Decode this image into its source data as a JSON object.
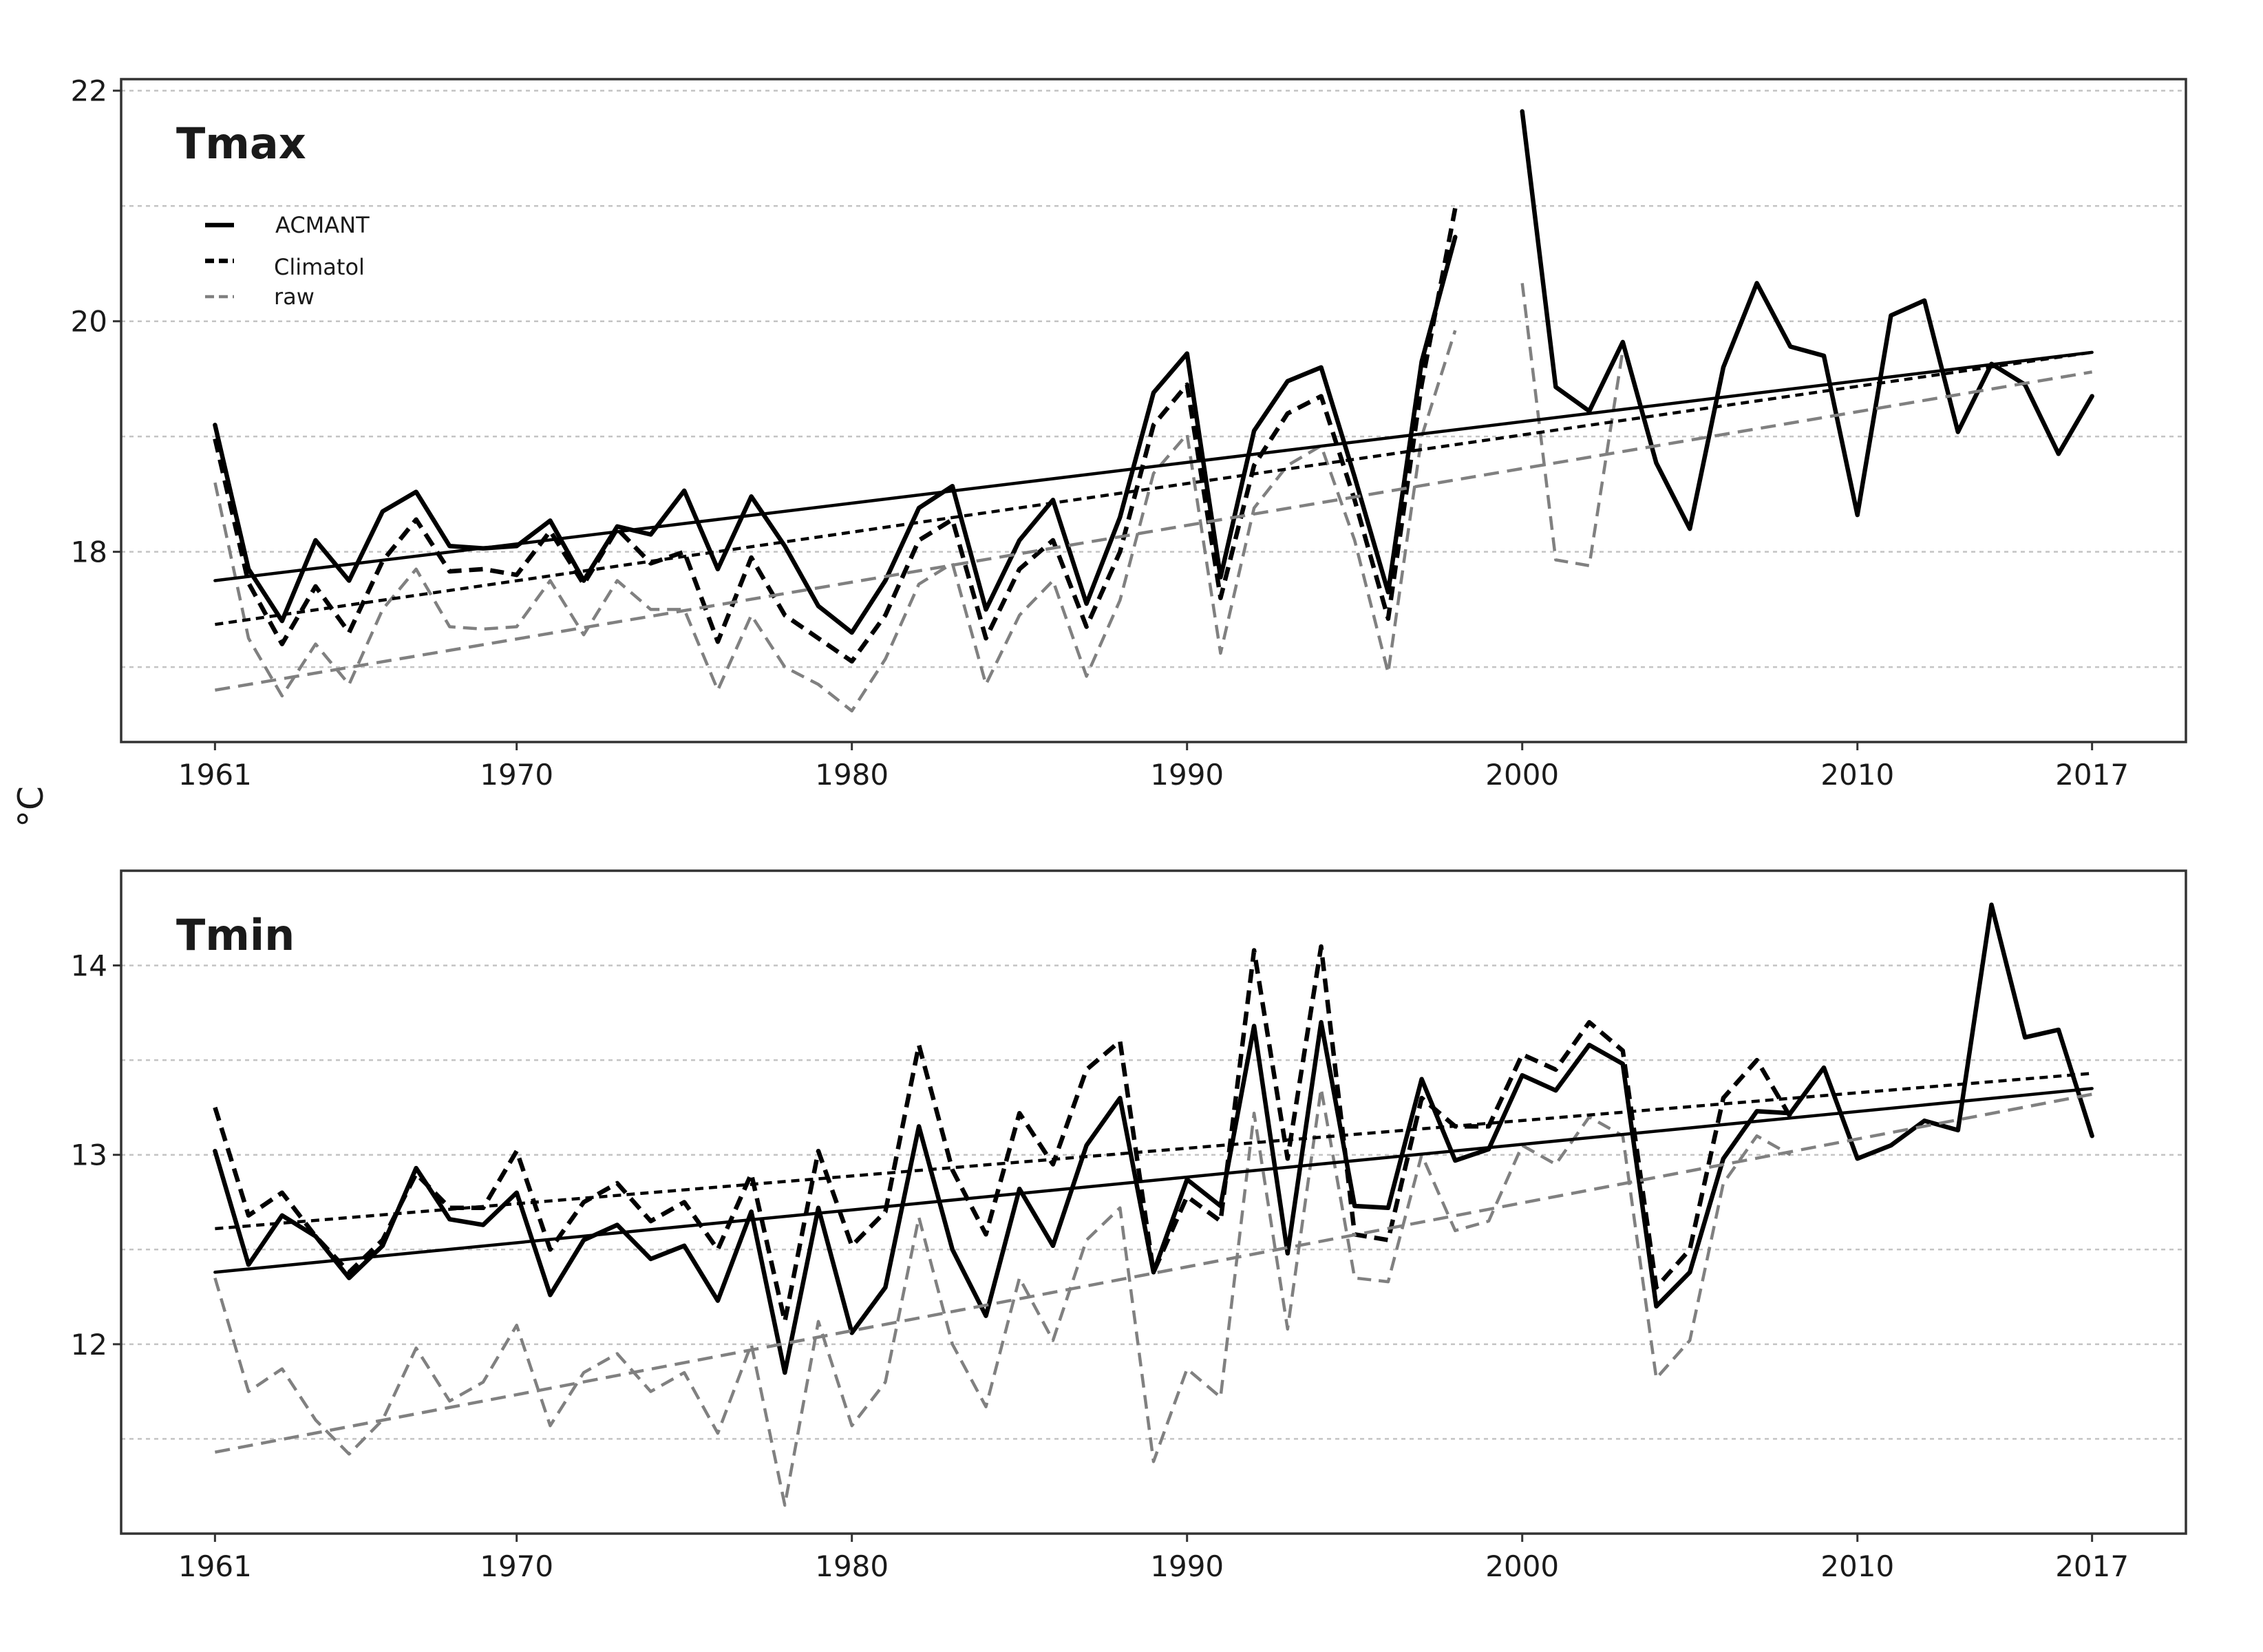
{
  "chart_data": {
    "type": "line",
    "ylabel": "°C",
    "legend": {
      "placement": "top-left",
      "entries": [
        {
          "label": "ACMANT",
          "style": "solid",
          "color": "#000000"
        },
        {
          "label": "Climatol",
          "style": "dashed",
          "color": "#000000"
        },
        {
          "label": "raw",
          "style": "dashed",
          "color": "#808080"
        }
      ]
    },
    "panels": [
      {
        "title": "Tmax",
        "ylim": [
          16.35,
          22.1
        ],
        "yticks": [
          18,
          20,
          22
        ],
        "grid_y": [
          17,
          18,
          19,
          20,
          21,
          22
        ],
        "xticks": [
          1961,
          1970,
          1980,
          1990,
          2000,
          2010,
          2017
        ],
        "xlim": [
          1958.2,
          2019.8
        ],
        "series": [
          {
            "name": "ACMANT",
            "color": "#000000",
            "style": "solid",
            "x": [
              1961,
              1962,
              1963,
              1964,
              1965,
              1966,
              1967,
              1968,
              1969,
              1970,
              1971,
              1972,
              1973,
              1974,
              1975,
              1976,
              1977,
              1978,
              1979,
              1980,
              1981,
              1982,
              1983,
              1984,
              1985,
              1986,
              1987,
              1988,
              1989,
              1990,
              1991,
              1992,
              1993,
              1994,
              1995,
              1996,
              1997,
              1998,
              1999,
              2000,
              2001,
              2002,
              2003,
              2004,
              2005,
              2006,
              2007,
              2008,
              2009,
              2010,
              2011,
              2012,
              2013,
              2014,
              2015,
              2016,
              2017
            ],
            "y": [
              19.1,
              17.85,
              17.4,
              18.1,
              17.75,
              18.35,
              18.52,
              18.05,
              18.03,
              18.05,
              18.27,
              17.75,
              18.22,
              18.15,
              18.53,
              17.85,
              18.48,
              18.05,
              17.53,
              17.3,
              17.75,
              18.38,
              18.57,
              17.5,
              18.1,
              18.45,
              17.55,
              18.3,
              19.38,
              19.72,
              17.78,
              19.05,
              19.48,
              19.6,
              18.65,
              17.65,
              19.65,
              20.73,
              null,
              21.82,
              19.43,
              19.22,
              19.82,
              18.77,
              18.2,
              19.6,
              20.33,
              19.78,
              19.7,
              18.32,
              20.05,
              20.18,
              19.04,
              19.63,
              19.45,
              18.85,
              19.35
            ]
          },
          {
            "name": "Climatol",
            "color": "#000000",
            "style": "dashed",
            "x": [
              1961,
              1962,
              1963,
              1964,
              1965,
              1966,
              1967,
              1968,
              1969,
              1970,
              1971,
              1972,
              1973,
              1974,
              1975,
              1976,
              1977,
              1978,
              1979,
              1980,
              1981,
              1982,
              1983,
              1984,
              1985,
              1986,
              1987,
              1988,
              1989,
              1990,
              1991,
              1992,
              1993,
              1994,
              1995,
              1996,
              1997,
              1998
            ],
            "y": [
              18.98,
              17.73,
              17.2,
              17.7,
              17.3,
              17.92,
              18.28,
              17.83,
              17.85,
              17.8,
              18.18,
              17.72,
              18.2,
              17.9,
              18.0,
              17.22,
              17.95,
              17.45,
              17.25,
              17.05,
              17.45,
              18.1,
              18.28,
              17.25,
              17.85,
              18.1,
              17.35,
              18.0,
              19.1,
              19.45,
              17.6,
              18.75,
              19.2,
              19.35,
              18.45,
              17.42,
              19.45,
              20.98
            ]
          },
          {
            "name": "raw",
            "color": "#808080",
            "style": "dashed",
            "x": [
              1961,
              1962,
              1963,
              1964,
              1965,
              1966,
              1967,
              1968,
              1969,
              1970,
              1971,
              1972,
              1973,
              1974,
              1975,
              1976,
              1977,
              1978,
              1979,
              1980,
              1981,
              1982,
              1983,
              1984,
              1985,
              1986,
              1987,
              1988,
              1989,
              1990,
              1991,
              1992,
              1993,
              1994,
              1995,
              1996,
              1997,
              1998,
              1999,
              2000,
              2001,
              2002,
              2003
            ],
            "y": [
              18.6,
              17.25,
              16.75,
              17.2,
              16.85,
              17.5,
              17.85,
              17.35,
              17.33,
              17.35,
              17.75,
              17.28,
              17.75,
              17.5,
              17.5,
              16.8,
              17.45,
              17.0,
              16.85,
              16.62,
              17.07,
              17.72,
              17.9,
              16.85,
              17.45,
              17.75,
              16.92,
              17.58,
              18.68,
              19.02,
              17.12,
              18.38,
              18.75,
              18.92,
              18.1,
              16.95,
              19.0,
              19.92,
              null,
              20.33,
              17.93,
              17.88,
              19.75
            ]
          },
          {
            "name": "",
            "color": "#000000",
            "style": "solid",
            "trend": true,
            "x": [
              1961,
              2017
            ],
            "y": [
              17.75,
              19.73
            ]
          },
          {
            "name": "",
            "color": "#000000",
            "style": "dotted",
            "trend": true,
            "x": [
              1961,
              2017
            ],
            "y": [
              17.37,
              19.73
            ]
          },
          {
            "name": "",
            "color": "#808080",
            "style": "dashed",
            "trend": true,
            "x": [
              1961,
              2017
            ],
            "y": [
              16.8,
              19.56
            ]
          }
        ]
      },
      {
        "title": "Tmin",
        "ylim": [
          11.0,
          14.5
        ],
        "yticks": [
          12,
          13,
          14
        ],
        "grid_y": [
          11.5,
          12,
          12.5,
          13,
          13.5,
          14
        ],
        "xticks": [
          1961,
          1970,
          1980,
          1990,
          2000,
          2010,
          2017
        ],
        "xlim": [
          1958.2,
          2019.8
        ],
        "series": [
          {
            "name": "ACMANT",
            "color": "#000000",
            "style": "solid",
            "x": [
              1961,
              1962,
              1963,
              1964,
              1965,
              1966,
              1967,
              1968,
              1969,
              1970,
              1971,
              1972,
              1973,
              1974,
              1975,
              1976,
              1977,
              1978,
              1979,
              1980,
              1981,
              1982,
              1983,
              1984,
              1985,
              1986,
              1987,
              1988,
              1989,
              1990,
              1991,
              1992,
              1993,
              1994,
              1995,
              1996,
              1997,
              1998,
              1999,
              2000,
              2001,
              2002,
              2003,
              2004,
              2005,
              2006,
              2007,
              2008,
              2009,
              2010,
              2011,
              2012,
              2013,
              2014,
              2015,
              2016,
              2017
            ],
            "y": [
              13.02,
              12.42,
              12.68,
              12.57,
              12.35,
              12.52,
              12.93,
              12.66,
              12.63,
              12.8,
              12.26,
              12.55,
              12.63,
              12.45,
              12.52,
              12.23,
              12.7,
              11.85,
              12.72,
              12.06,
              12.3,
              13.15,
              12.5,
              12.15,
              12.82,
              12.52,
              13.05,
              13.3,
              12.38,
              12.87,
              12.73,
              13.68,
              12.48,
              13.7,
              12.73,
              12.72,
              13.4,
              12.97,
              13.03,
              13.42,
              13.34,
              13.58,
              13.48,
              12.2,
              12.38,
              12.98,
              13.23,
              13.22,
              13.46,
              12.98,
              13.05,
              13.18,
              13.13,
              14.32,
              13.62,
              13.66,
              13.1
            ]
          },
          {
            "name": "Climatol",
            "color": "#000000",
            "style": "dashed",
            "x": [
              1961,
              1962,
              1963,
              1964,
              1965,
              1966,
              1967,
              1968,
              1969,
              1970,
              1971,
              1972,
              1973,
              1974,
              1975,
              1976,
              1977,
              1978,
              1979,
              1980,
              1981,
              1982,
              1983,
              1984,
              1985,
              1986,
              1987,
              1988,
              1989,
              1990,
              1991,
              1992,
              1993,
              1994,
              1995,
              1996,
              1997,
              1998,
              1999,
              2000,
              2001,
              2002,
              2003,
              2004,
              2005,
              2006,
              2007,
              2008
            ],
            "y": [
              13.25,
              12.68,
              12.8,
              12.57,
              12.38,
              12.55,
              12.9,
              12.72,
              12.72,
              13.02,
              12.5,
              12.75,
              12.85,
              12.65,
              12.75,
              12.5,
              12.9,
              12.12,
              13.02,
              12.52,
              12.7,
              13.58,
              12.92,
              12.58,
              13.22,
              12.95,
              13.45,
              13.6,
              12.38,
              12.78,
              12.65,
              14.08,
              12.98,
              14.1,
              12.58,
              12.55,
              13.3,
              13.15,
              13.15,
              13.53,
              13.45,
              13.7,
              13.55,
              12.3,
              12.5,
              13.3,
              13.5,
              13.2
            ]
          },
          {
            "name": "raw",
            "color": "#808080",
            "style": "dashed",
            "x": [
              1961,
              1962,
              1963,
              1964,
              1965,
              1966,
              1967,
              1968,
              1969,
              1970,
              1971,
              1972,
              1973,
              1974,
              1975,
              1976,
              1977,
              1978,
              1979,
              1980,
              1981,
              1982,
              1983,
              1984,
              1985,
              1986,
              1987,
              1988,
              1989,
              1990,
              1991,
              1992,
              1993,
              1994,
              1995,
              1996,
              1997,
              1998,
              1999,
              2000,
              2001,
              2002,
              2003,
              2004,
              2005,
              2006,
              2007,
              2008
            ],
            "y": [
              12.35,
              11.75,
              11.87,
              11.6,
              11.42,
              11.6,
              11.98,
              11.7,
              11.8,
              12.1,
              11.57,
              11.85,
              11.95,
              11.75,
              11.85,
              11.53,
              12.0,
              11.15,
              12.12,
              11.57,
              11.8,
              12.67,
              12.0,
              11.67,
              12.35,
              12.02,
              12.55,
              12.72,
              11.38,
              11.87,
              11.72,
              13.22,
              12.08,
              13.35,
              12.35,
              12.33,
              13.0,
              12.6,
              12.65,
              13.05,
              12.95,
              13.2,
              13.1,
              11.82,
              12.02,
              12.85,
              13.1,
              13.0
            ]
          },
          {
            "name": "",
            "color": "#000000",
            "style": "solid",
            "trend": true,
            "x": [
              1961,
              2017
            ],
            "y": [
              12.38,
              13.35
            ]
          },
          {
            "name": "",
            "color": "#000000",
            "style": "dotted",
            "trend": true,
            "x": [
              1961,
              2017
            ],
            "y": [
              12.61,
              13.43
            ]
          },
          {
            "name": "",
            "color": "#808080",
            "style": "dashed",
            "trend": true,
            "x": [
              1961,
              2017
            ],
            "y": [
              11.43,
              13.32
            ]
          }
        ]
      }
    ]
  }
}
